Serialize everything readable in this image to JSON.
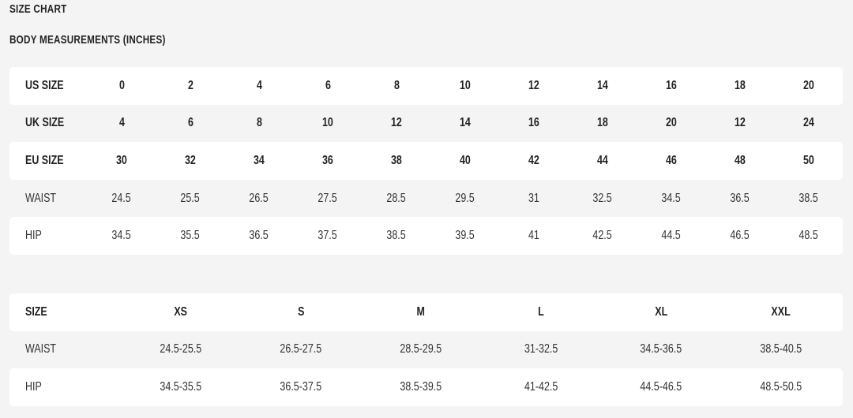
{
  "title": "SIZE CHART",
  "subtitle": "BODY MEASUREMENTS (INCHES)",
  "table1": {
    "rows": [
      {
        "label": "US SIZE",
        "bold": true,
        "values": [
          "0",
          "2",
          "4",
          "6",
          "8",
          "10",
          "12",
          "14",
          "16",
          "18",
          "20"
        ]
      },
      {
        "label": "UK SIZE",
        "bold": true,
        "values": [
          "4",
          "6",
          "8",
          "10",
          "12",
          "14",
          "16",
          "18",
          "20",
          "12",
          "24"
        ]
      },
      {
        "label": "EU SIZE",
        "bold": true,
        "values": [
          "30",
          "32",
          "34",
          "36",
          "38",
          "40",
          "42",
          "44",
          "46",
          "48",
          "50"
        ]
      },
      {
        "label": "WAIST",
        "bold": false,
        "values": [
          "24.5",
          "25.5",
          "26.5",
          "27.5",
          "28.5",
          "29.5",
          "31",
          "32.5",
          "34.5",
          "36.5",
          "38.5"
        ]
      },
      {
        "label": "HIP",
        "bold": false,
        "values": [
          "34.5",
          "35.5",
          "36.5",
          "37.5",
          "38.5",
          "39.5",
          "41",
          "42.5",
          "44.5",
          "46.5",
          "48.5"
        ]
      }
    ]
  },
  "table2": {
    "rows": [
      {
        "label": "SIZE",
        "bold": true,
        "values": [
          "XS",
          "S",
          "M",
          "L",
          "XL",
          "XXL"
        ]
      },
      {
        "label": "WAIST",
        "bold": false,
        "values": [
          "24.5-25.5",
          "26.5-27.5",
          "28.5-29.5",
          "31-32.5",
          "34.5-36.5",
          "38.5-40.5"
        ]
      },
      {
        "label": "HIP",
        "bold": false,
        "values": [
          "34.5-35.5",
          "36.5-37.5",
          "38.5-39.5",
          "41-42.5",
          "44.5-46.5",
          "48.5-50.5"
        ]
      }
    ]
  }
}
